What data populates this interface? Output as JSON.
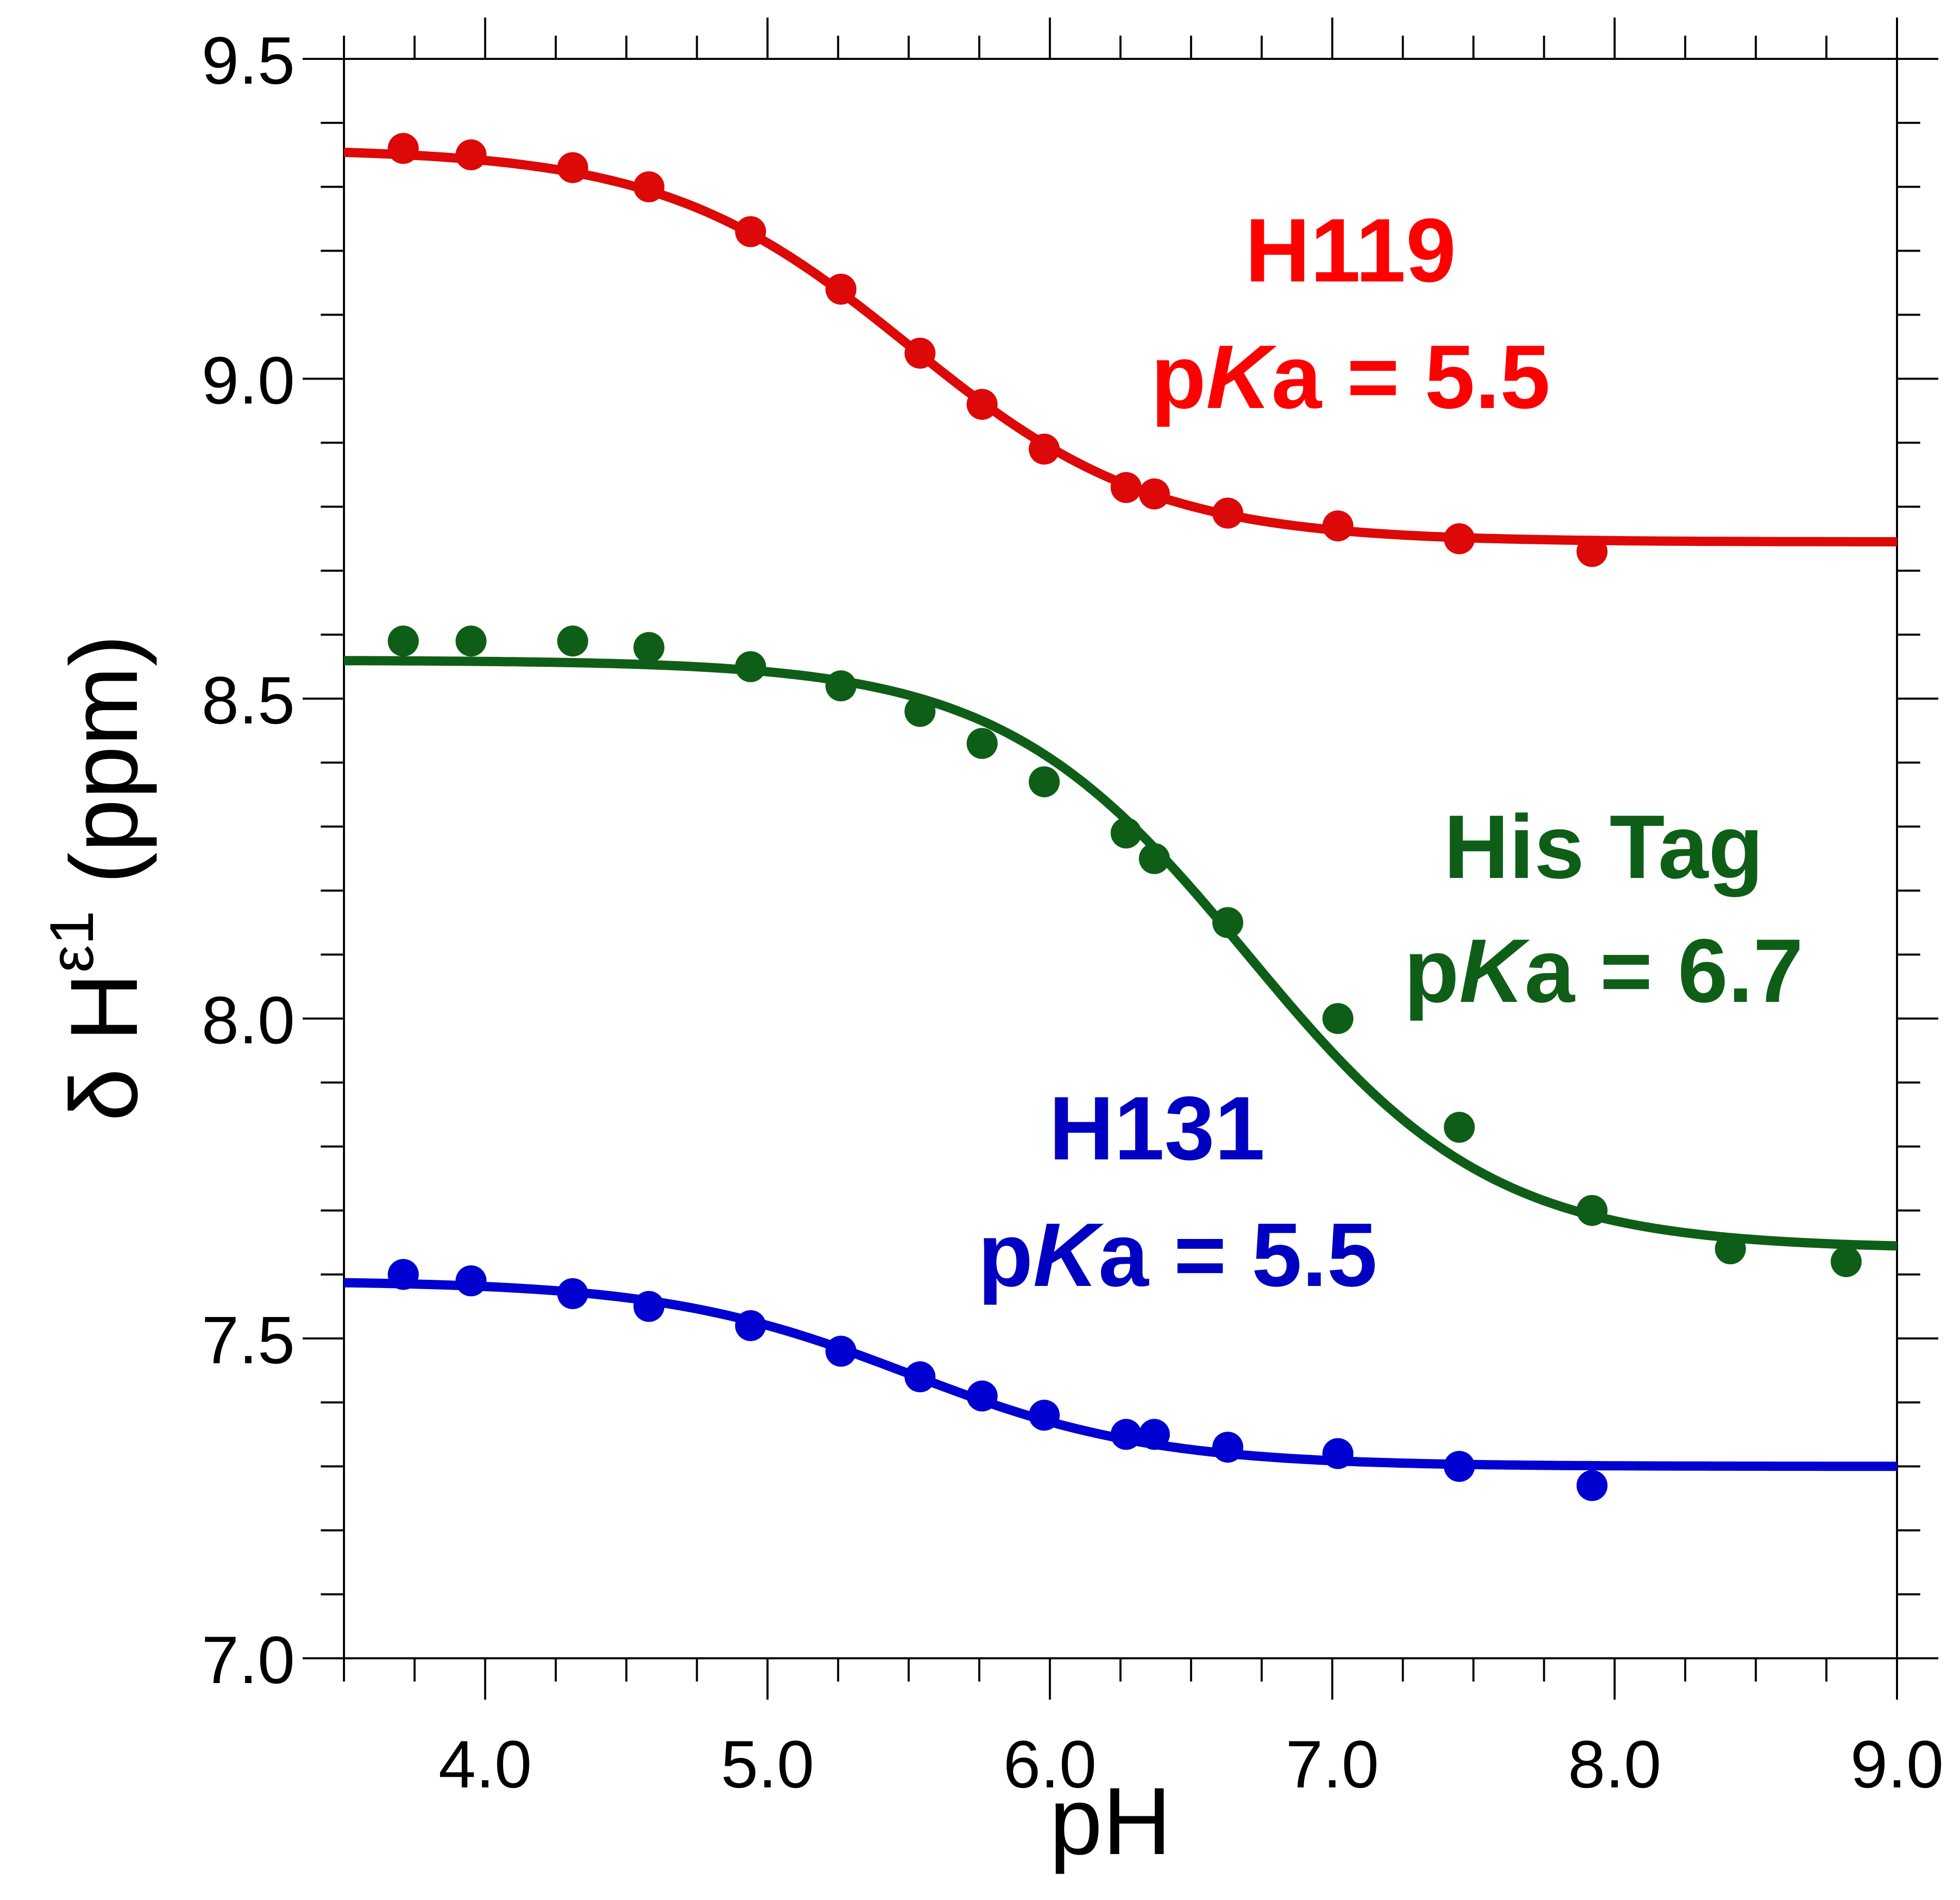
{
  "chart_data": {
    "type": "scatter",
    "title": "",
    "xlabel": "pH",
    "ylabel_parts": {
      "prefix": "δ H",
      "superscript": "ε1",
      "suffix": " (ppm)"
    },
    "xlim": [
      3.5,
      9.0
    ],
    "ylim": [
      7.0,
      9.5
    ],
    "x_ticks": [
      4.0,
      5.0,
      6.0,
      7.0,
      8.0,
      9.0
    ],
    "x_tick_labels": [
      "4.0",
      "5.0",
      "6.0",
      "7.0",
      "8.0",
      "9.0"
    ],
    "y_ticks": [
      7.0,
      7.5,
      8.0,
      8.5,
      9.0,
      9.5
    ],
    "y_tick_labels": [
      "7.0",
      "7.5",
      "8.0",
      "8.5",
      "9.0",
      "9.5"
    ],
    "x_minor_step": 0.25,
    "y_minor_step": 0.1,
    "grid": false,
    "legend": "none",
    "series": [
      {
        "name": "H119",
        "pKa_label": "pKa = 5.5",
        "pKa": 5.5,
        "fit_high": 9.36,
        "fit_low": 8.745,
        "color": "#dd0808",
        "label_color": "#ff0000",
        "x": [
          3.71,
          3.95,
          4.31,
          4.58,
          4.94,
          5.26,
          5.54,
          5.76,
          5.98,
          6.27,
          6.37,
          6.63,
          7.02,
          7.45,
          7.92
        ],
        "y": [
          9.36,
          9.35,
          9.33,
          9.3,
          9.23,
          9.14,
          9.04,
          8.96,
          8.89,
          8.83,
          8.82,
          8.79,
          8.77,
          8.75,
          8.73
        ]
      },
      {
        "name": "His Tag",
        "pKa_label": "pKa = 6.7",
        "pKa": 6.7,
        "fit_high": 8.56,
        "fit_low": 7.64,
        "color": "#0e5e18",
        "label_color": "#0e5e18",
        "x": [
          3.71,
          3.95,
          4.31,
          4.58,
          4.94,
          5.26,
          5.54,
          5.76,
          5.98,
          6.27,
          6.37,
          6.63,
          7.02,
          7.45,
          7.92,
          8.41,
          8.82
        ],
        "y": [
          8.59,
          8.59,
          8.59,
          8.58,
          8.55,
          8.52,
          8.48,
          8.43,
          8.37,
          8.29,
          8.25,
          8.15,
          8.0,
          7.83,
          7.7,
          7.64,
          7.62
        ]
      },
      {
        "name": "H131",
        "pKa_label": "pKa = 5.5",
        "pKa": 5.5,
        "fit_high": 7.59,
        "fit_low": 7.3,
        "color": "#0000d0",
        "label_color": "#0000c0",
        "x": [
          3.71,
          3.95,
          4.31,
          4.58,
          4.94,
          5.26,
          5.54,
          5.76,
          5.98,
          6.27,
          6.37,
          6.63,
          7.02,
          7.45,
          7.92
        ],
        "y": [
          7.6,
          7.59,
          7.57,
          7.55,
          7.52,
          7.48,
          7.44,
          7.41,
          7.38,
          7.35,
          7.35,
          7.33,
          7.32,
          7.3,
          7.27
        ]
      }
    ]
  }
}
